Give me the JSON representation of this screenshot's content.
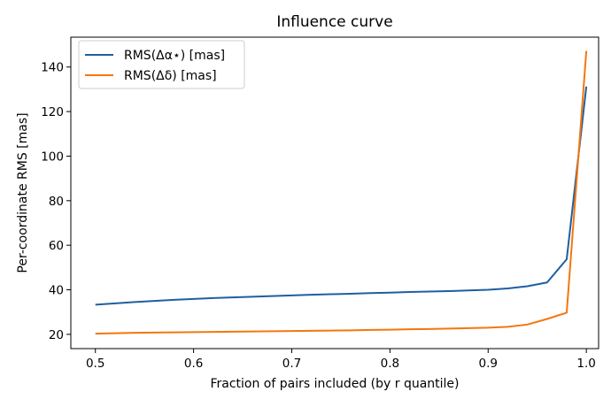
{
  "chart_data": {
    "type": "line",
    "title": "Influence curve",
    "xlabel": "Fraction of pairs included (by r quantile)",
    "ylabel": "Per-coordinate RMS [mas]",
    "xlim": [
      0.475,
      1.0125
    ],
    "ylim": [
      13.6,
      153.4
    ],
    "xticks": [
      0.5,
      0.6,
      0.7,
      0.8,
      0.9,
      1.0
    ],
    "xtick_labels": [
      "0.5",
      "0.6",
      "0.7",
      "0.8",
      "0.9",
      "1.0"
    ],
    "yticks": [
      20,
      40,
      60,
      80,
      100,
      120,
      140
    ],
    "ytick_labels": [
      "20",
      "40",
      "60",
      "80",
      "100",
      "120",
      "140"
    ],
    "grid": false,
    "legend_position": "top-left",
    "x": [
      0.5,
      0.52,
      0.54,
      0.56,
      0.58,
      0.6,
      0.62,
      0.64,
      0.66,
      0.68,
      0.7,
      0.72,
      0.74,
      0.76,
      0.78,
      0.8,
      0.82,
      0.84,
      0.86,
      0.88,
      0.9,
      0.92,
      0.94,
      0.96,
      0.98,
      1.0
    ],
    "series": [
      {
        "name": "RMS(Δα⋆) [mas]",
        "color": "#1f5f9f",
        "values": [
          33.3,
          33.9,
          34.5,
          35.0,
          35.5,
          35.9,
          36.3,
          36.6,
          36.9,
          37.2,
          37.5,
          37.8,
          38.0,
          38.2,
          38.5,
          38.7,
          39.0,
          39.2,
          39.4,
          39.7,
          40.0,
          40.6,
          41.6,
          43.3,
          53.7,
          131.2
        ]
      },
      {
        "name": "RMS(Δδ) [mas]",
        "color": "#f5760e",
        "values": [
          20.3,
          20.5,
          20.7,
          20.8,
          20.9,
          21.0,
          21.1,
          21.2,
          21.3,
          21.4,
          21.5,
          21.6,
          21.7,
          21.8,
          22.0,
          22.1,
          22.3,
          22.4,
          22.6,
          22.8,
          23.0,
          23.4,
          24.4,
          26.9,
          29.7,
          147.2
        ]
      }
    ]
  }
}
